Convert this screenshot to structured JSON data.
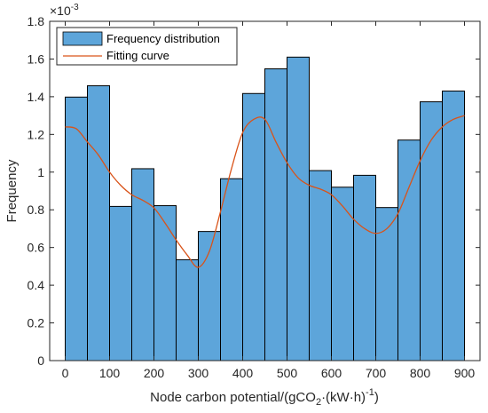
{
  "chart_data": {
    "type": "bar",
    "bin_edges": [
      0,
      50,
      100,
      150,
      200,
      250,
      300,
      350,
      400,
      450,
      500,
      550,
      600,
      650,
      700,
      750,
      800,
      850,
      900
    ],
    "values": [
      0.001398,
      0.001458,
      0.000818,
      0.001018,
      0.000822,
      0.000535,
      0.000685,
      0.000965,
      0.001417,
      0.001548,
      0.00161,
      0.001008,
      0.00092,
      0.000983,
      0.000812,
      0.00117,
      0.001373,
      0.00143
    ],
    "fit_curve": {
      "x": [
        0,
        25,
        50,
        75,
        100,
        125,
        150,
        175,
        200,
        225,
        250,
        275,
        300,
        325,
        350,
        375,
        400,
        425,
        450,
        475,
        500,
        525,
        550,
        575,
        600,
        625,
        650,
        675,
        700,
        725,
        750,
        775,
        800,
        825,
        850,
        875,
        900
      ],
      "y": [
        0.00124,
        0.00123,
        0.00116,
        0.00109,
        0.001,
        0.00093,
        0.00088,
        0.00085,
        0.00081,
        0.00073,
        0.00064,
        0.00056,
        0.000495,
        0.00058,
        0.00079,
        0.00102,
        0.00121,
        0.00128,
        0.00128,
        0.00116,
        0.00105,
        0.00097,
        0.00093,
        0.00091,
        0.00088,
        0.00082,
        0.00075,
        0.0007,
        0.000675,
        0.0007,
        0.00078,
        0.00092,
        0.00106,
        0.00117,
        0.00124,
        0.00128,
        0.0013
      ]
    },
    "xlim": [
      -35,
      935
    ],
    "ylim": [
      0,
      0.0018
    ],
    "x_ticks": [
      0,
      100,
      200,
      300,
      400,
      500,
      600,
      700,
      800,
      900
    ],
    "y_ticks": [
      0,
      0.0002,
      0.0004,
      0.0006,
      0.0008,
      0.001,
      0.0012,
      0.0014,
      0.0016,
      0.0018
    ],
    "y_tick_labels": [
      "0",
      "0.2",
      "0.4",
      "0.6",
      "0.8",
      "1",
      "1.2",
      "1.4",
      "1.6",
      "1.8"
    ],
    "y_exponent_label": "×10",
    "y_exponent_power": "-3",
    "xlabel_main": "Node carbon potential/(gCO",
    "xlabel_sub": "2",
    "xlabel_mid": "·(kW·h)",
    "xlabel_sup": "-1",
    "xlabel_end": ")",
    "ylabel": "Frequency",
    "legend": [
      {
        "label": "Frequency distribution",
        "kind": "patch",
        "color": "#5DA5DA"
      },
      {
        "label": "Fitting curve",
        "kind": "line",
        "color": "#D95319"
      }
    ],
    "legend_position": "top-left",
    "bar_color": "#5DA5DA",
    "bar_edge_color": "#000000",
    "curve_color": "#D95319",
    "grid": false
  }
}
